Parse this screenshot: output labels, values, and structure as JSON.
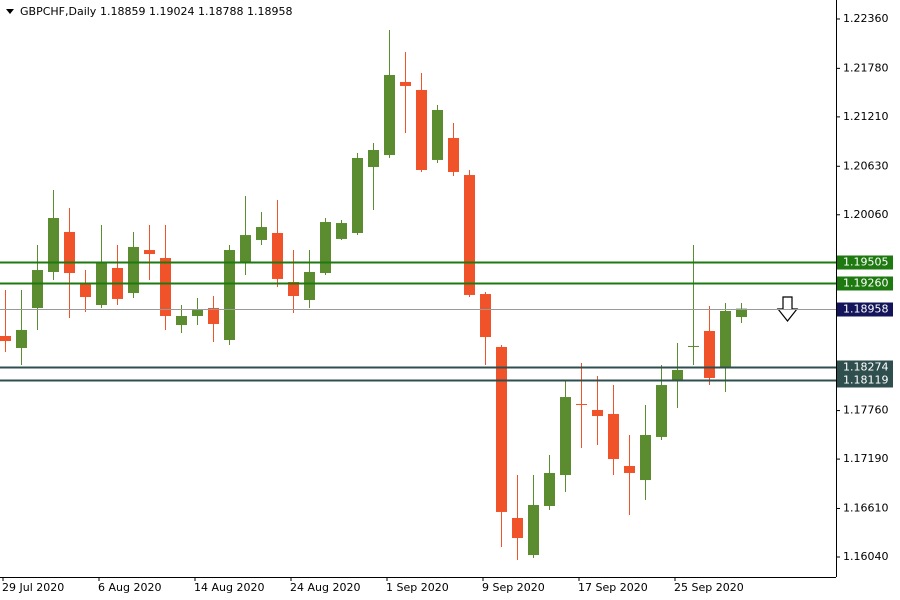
{
  "chart_data": {
    "type": "candlestick",
    "symbol": "GBPCHF,Daily",
    "categories": [
      "29 Jul 2020",
      null,
      null,
      null,
      null,
      null,
      "6 Aug 2020",
      null,
      null,
      null,
      null,
      null,
      "14 Aug 2020",
      null,
      null,
      null,
      null,
      null,
      "24 Aug 2020",
      null,
      null,
      null,
      null,
      null,
      "1 Sep 2020",
      null,
      null,
      null,
      null,
      null,
      "9 Sep 2020",
      null,
      null,
      null,
      null,
      null,
      "17 Sep 2020",
      null,
      null,
      null,
      null,
      null,
      "25 Sep 2020",
      null,
      null,
      null,
      null
    ],
    "series": {
      "open": [
        1.18636,
        1.18495,
        1.18965,
        1.19388,
        1.19858,
        1.19259,
        1.19,
        1.19435,
        1.19141,
        1.19646,
        1.19552,
        1.18765,
        1.18871,
        1.18965,
        1.18589,
        1.19505,
        1.19764,
        1.19846,
        1.1927,
        1.19059,
        1.19376,
        1.19776,
        1.19846,
        1.20621,
        1.20762,
        1.2162,
        1.21526,
        1.20704,
        1.20962,
        1.20527,
        1.19129,
        1.18507,
        1.16498,
        1.16063,
        1.16639,
        1.17003,
        1.17837,
        1.17767,
        1.1772,
        1.17109,
        1.16944,
        1.1745,
        1.18119,
        1.18507,
        1.18695,
        1.18272,
        1.18859
      ],
      "high": [
        1.19176,
        1.19176,
        1.19705,
        1.20351,
        1.2014,
        1.19411,
        1.1994,
        1.19705,
        1.19858,
        1.1994,
        1.1994,
        1.19,
        1.19082,
        1.19106,
        1.19705,
        1.20281,
        1.20093,
        1.20234,
        1.19646,
        1.19646,
        1.20022,
        1.19999,
        1.20786,
        1.20903,
        1.22231,
        1.21972,
        1.21726,
        1.2135,
        1.21138,
        1.20586,
        1.19153,
        1.1853,
        1.17003,
        1.17003,
        1.17238,
        1.18119,
        1.18319,
        1.18166,
        1.1806,
        1.17473,
        1.17826,
        1.18295,
        1.18554,
        1.19705,
        1.18988,
        1.19024,
        1.19024
      ],
      "low": [
        1.18448,
        1.18295,
        1.18707,
        1.19294,
        1.18848,
        1.18918,
        1.18965,
        1.19,
        1.19082,
        1.19294,
        1.18707,
        1.18671,
        1.18765,
        1.18566,
        1.1853,
        1.19353,
        1.19705,
        1.19212,
        1.18906,
        1.18965,
        1.19353,
        1.19764,
        1.19822,
        1.20116,
        1.20727,
        1.21021,
        1.20563,
        1.20668,
        1.20516,
        1.19094,
        1.18295,
        1.16157,
        1.16005,
        1.16028,
        1.16592,
        1.16804,
        1.1732,
        1.17356,
        1.17003,
        1.16533,
        1.1671,
        1.17414,
        1.1779,
        1.18295,
        1.1806,
        1.17978,
        1.18788
      ],
      "close": [
        1.18577,
        1.18707,
        1.19411,
        1.20022,
        1.19376,
        1.19094,
        1.19505,
        1.19071,
        1.19682,
        1.19599,
        1.18871,
        1.18871,
        1.18941,
        1.18777,
        1.19646,
        1.19822,
        1.19916,
        1.19306,
        1.19106,
        1.19388,
        1.19975,
        1.19963,
        1.20727,
        1.20821,
        1.21702,
        1.21573,
        1.20586,
        1.21291,
        1.20563,
        1.19118,
        1.18624,
        1.16569,
        1.16263,
        1.16651,
        1.17027,
        1.17919,
        1.17826,
        1.17696,
        1.17191,
        1.17027,
        1.17473,
        1.1806,
        1.18237,
        1.18519,
        1.18143,
        1.1893,
        1.18958
      ]
    },
    "up_color": "#5b8c2f",
    "down_color": "#f0522a",
    "price_line_color": "#9a9a9a",
    "price_label_color": "#14145a",
    "ylim": [
      1.15805,
      1.22583
    ],
    "yticks": [
      {
        "value": 1.2236,
        "label": "1.22360"
      },
      {
        "value": 1.2178,
        "label": "1.21780"
      },
      {
        "value": 1.2121,
        "label": "1.21210"
      },
      {
        "value": 1.2063,
        "label": "1.20630"
      },
      {
        "value": 1.2006,
        "label": "1.20060"
      },
      {
        "value": 1.1776,
        "label": "1.17760"
      },
      {
        "value": 1.1719,
        "label": "1.17190"
      },
      {
        "value": 1.1661,
        "label": "1.16610"
      },
      {
        "value": 1.1604,
        "label": "1.16040"
      }
    ],
    "hlines": [
      {
        "value": 1.19505,
        "color": "#1e7a10"
      },
      {
        "value": 1.1926,
        "label": "1.19260",
        "color": "#1e7a10"
      },
      {
        "value": 1.18274,
        "color": "#2f4f4f"
      },
      {
        "value": 1.18119,
        "color": "#2f4f4f"
      }
    ]
  }
}
